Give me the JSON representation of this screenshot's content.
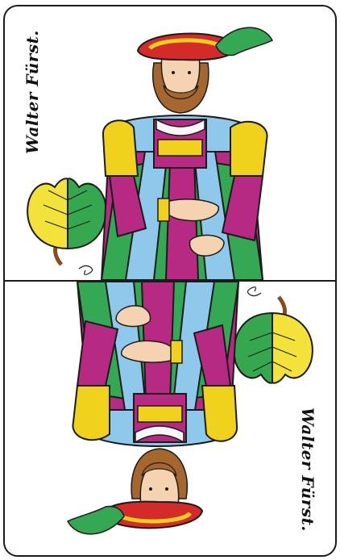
{
  "card": {
    "name_label": "Walter Fürst.",
    "suit": "leaf-suit-icon",
    "colors": {
      "outline": "#1b1b1b",
      "hat_red": "#d42a2a",
      "gold": "#f0d21c",
      "green": "#34a853",
      "magenta": "#b72a83",
      "light_blue": "#8ec8ea",
      "skin": "#f5d2b0",
      "hair": "#a5672e"
    }
  }
}
